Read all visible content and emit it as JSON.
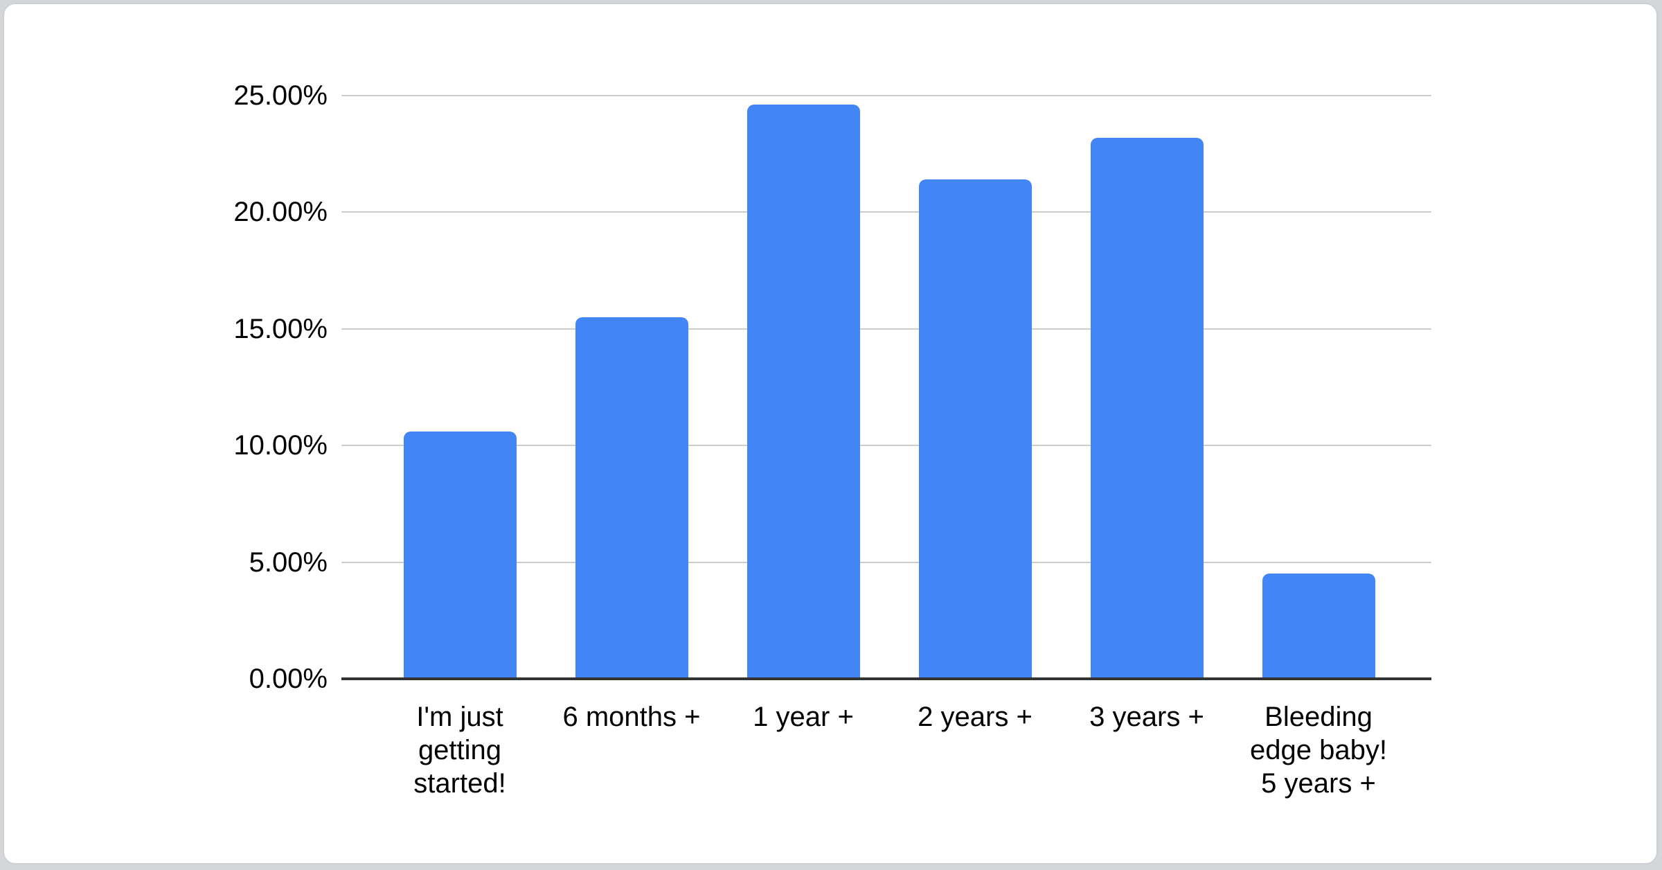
{
  "page": {
    "background_color": "#d3d7da"
  },
  "card": {
    "background_color": "#ffffff",
    "border_color": "#ccd0d4"
  },
  "chart_data": {
    "type": "bar",
    "title": "",
    "xlabel": "",
    "ylabel": "",
    "legend_position": "none",
    "grid": true,
    "categories": [
      "I'm just getting started!",
      "6 months +",
      "1 year +",
      "2 years +",
      "3 years +",
      "Bleeding edge baby! 5 years +"
    ],
    "category_lines": [
      [
        "I'm just",
        "getting",
        "started!"
      ],
      [
        "6 months +"
      ],
      [
        "1 year +"
      ],
      [
        "2 years +"
      ],
      [
        "3 years +"
      ],
      [
        "Bleeding",
        "edge baby!",
        "5 years +"
      ]
    ],
    "values": [
      10.6,
      15.5,
      24.6,
      21.4,
      23.2,
      4.5
    ],
    "unit": "%",
    "ylim": [
      0,
      25
    ],
    "y_tick_values": [
      0,
      5,
      10,
      15,
      20,
      25
    ],
    "y_tick_labels": [
      "0.00%",
      "5.00%",
      "10.00%",
      "15.00%",
      "20.00%",
      "25.00%"
    ],
    "bar_color": "#4285F4",
    "gridline_color": "#cccccc",
    "baseline_color": "#333333",
    "label_color": "#000000"
  }
}
